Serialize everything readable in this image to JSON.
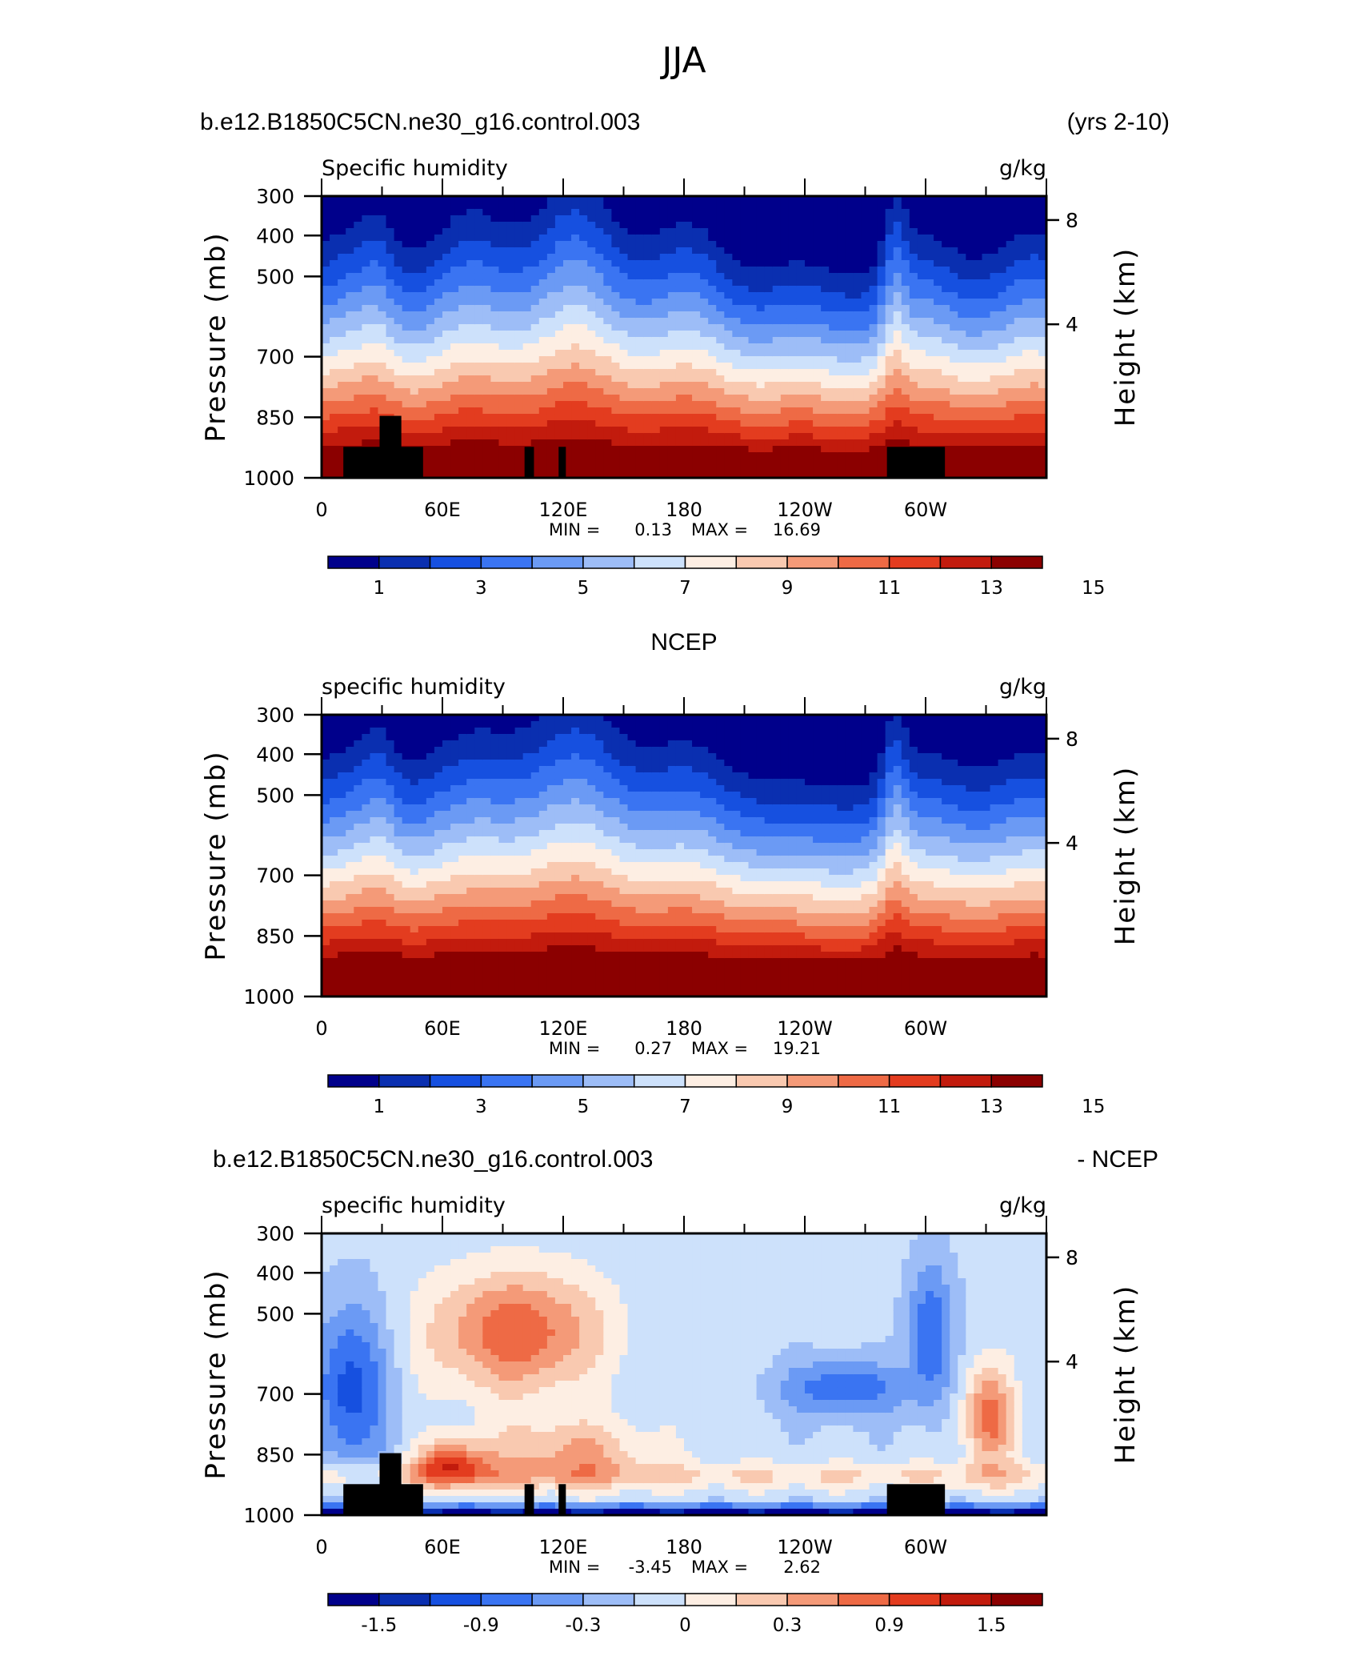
{
  "figure": {
    "season": "JJA"
  },
  "chart_data": [
    {
      "type": "heatmap",
      "header_left": "b.e12.B1850C5CN.ne30_g16.control.003",
      "header_right": "(yrs 2-10)",
      "title": "Specific humidity",
      "units": "g/kg",
      "ylabel": "Pressure (mb)",
      "ylabel_right": "Height (km)",
      "x_ticks": [
        "0",
        "60E",
        "120E",
        "180",
        "120W",
        "60W"
      ],
      "y_ticks": [
        "300",
        "400",
        "500",
        "700",
        "850",
        "1000"
      ],
      "y_ticks_right": [
        "8",
        "4"
      ],
      "ylim": [
        300,
        1000
      ],
      "min_label": "MIN =",
      "min_value": "0.13",
      "max_label": "MAX =",
      "max_value": "16.69",
      "colorbar_labels": [
        "1",
        "3",
        "5",
        "7",
        "9",
        "11",
        "13",
        "15"
      ],
      "colorbar_colors": [
        "#00008b",
        "#0a2fb0",
        "#1650e0",
        "#3a74f2",
        "#6b9af4",
        "#9dbdf7",
        "#cde1fb",
        "#fdeee3",
        "#f9c9b0",
        "#f49a78",
        "#ee6a45",
        "#e33c1f",
        "#c21b0d",
        "#8b0000"
      ],
      "topography": "black blocks near surface at about 10E-40E, 100E, 120E and 75W-50W"
    },
    {
      "type": "heatmap",
      "header_center": "NCEP",
      "title": "specific humidity",
      "units": "g/kg",
      "ylabel": "Pressure (mb)",
      "ylabel_right": "Height (km)",
      "x_ticks": [
        "0",
        "60E",
        "120E",
        "180",
        "120W",
        "60W"
      ],
      "y_ticks": [
        "300",
        "400",
        "500",
        "700",
        "850",
        "1000"
      ],
      "y_ticks_right": [
        "8",
        "4"
      ],
      "ylim": [
        300,
        1000
      ],
      "min_label": "MIN =",
      "min_value": "0.27",
      "max_label": "MAX =",
      "max_value": "19.21",
      "colorbar_labels": [
        "1",
        "3",
        "5",
        "7",
        "9",
        "11",
        "13",
        "15"
      ],
      "colorbar_colors": [
        "#00008b",
        "#0a2fb0",
        "#1650e0",
        "#3a74f2",
        "#6b9af4",
        "#9dbdf7",
        "#cde1fb",
        "#fdeee3",
        "#f9c9b0",
        "#f49a78",
        "#ee6a45",
        "#e33c1f",
        "#c21b0d",
        "#8b0000"
      ]
    },
    {
      "type": "heatmap",
      "header_left": "b.e12.B1850C5CN.ne30_g16.control.003",
      "header_right": "- NCEP",
      "title": "specific humidity",
      "units": "g/kg",
      "ylabel": "Pressure (mb)",
      "ylabel_right": "Height (km)",
      "x_ticks": [
        "0",
        "60E",
        "120E",
        "180",
        "120W",
        "60W"
      ],
      "y_ticks": [
        "300",
        "400",
        "500",
        "700",
        "850",
        "1000"
      ],
      "y_ticks_right": [
        "8",
        "4"
      ],
      "ylim": [
        300,
        1000
      ],
      "min_label": "MIN =",
      "min_value": "-3.45",
      "max_label": "MAX =",
      "max_value": "2.62",
      "colorbar_labels": [
        "-1.5",
        "-0.9",
        "-0.3",
        "0",
        "0.3",
        "0.9",
        "1.5"
      ],
      "colorbar_colors": [
        "#00008b",
        "#0a2fb0",
        "#1650e0",
        "#3a74f2",
        "#6b9af4",
        "#9dbdf7",
        "#cde1fb",
        "#fdeee3",
        "#f9c9b0",
        "#f49a78",
        "#ee6a45",
        "#e33c1f",
        "#c21b0d",
        "#8b0000"
      ],
      "topography": "black blocks near surface at about 10E-40E, 100E, 120E and 75W-50W"
    }
  ]
}
